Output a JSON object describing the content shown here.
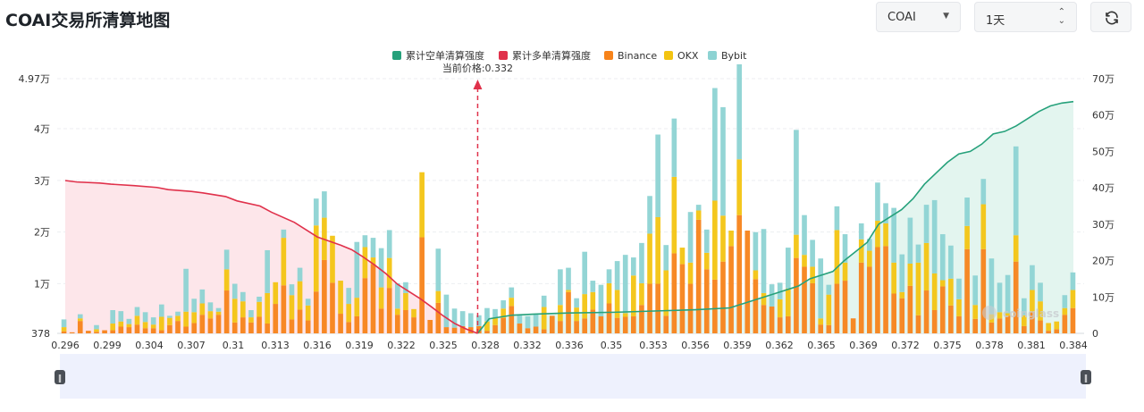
{
  "page": {
    "title": "COAI交易所清算地图"
  },
  "controls": {
    "symbol": "COAI",
    "period": "1天",
    "refresh_icon": "refresh-icon",
    "symbol_caret_icon": "caret-down-icon",
    "period_caret_icon": "up-down-caret-icon"
  },
  "watermark": "coinglass",
  "chart_data": {
    "type": "bar",
    "legend": [
      {
        "name": "累计空单清算强度",
        "color": "#26a17b"
      },
      {
        "name": "累计多单清算强度",
        "color": "#e0314b"
      },
      {
        "name": "Binance",
        "color": "#f7831a"
      },
      {
        "name": "OKX",
        "color": "#f3c412"
      },
      {
        "name": "Bybit",
        "color": "#8dd3d3"
      }
    ],
    "legend_position": "top-center",
    "current_price_label": "当前价格:0.332",
    "current_price": 0.332,
    "y_left": {
      "ticks": [
        "378",
        "1万",
        "2万",
        "3万",
        "4万",
        "4.97万"
      ],
      "tick_values": [
        378,
        10000,
        20000,
        30000,
        40000,
        49700
      ],
      "range": [
        378,
        49700
      ]
    },
    "y_right": {
      "ticks": [
        "0",
        "10万",
        "20万",
        "30万",
        "40万",
        "50万",
        "60万",
        "70万"
      ],
      "tick_values": [
        0,
        100000,
        200000,
        300000,
        400000,
        500000,
        600000,
        700000
      ],
      "range": [
        0,
        700000
      ]
    },
    "x_tick_labels": [
      "0.296",
      "0.299",
      "0.304",
      "0.307",
      "0.31",
      "0.313",
      "0.316",
      "0.319",
      "0.322",
      "0.325",
      "0.328",
      "0.332",
      "0.336",
      "0.35",
      "0.353",
      "0.356",
      "0.359",
      "0.362",
      "0.365",
      "0.369",
      "0.372",
      "0.375",
      "0.378",
      "0.381",
      "0.384"
    ],
    "stacks": [
      [
        400,
        800,
        1500
      ],
      [
        200,
        0,
        0
      ],
      [
        2400,
        500,
        800
      ],
      [
        500,
        0,
        0
      ],
      [
        300,
        500,
        800
      ],
      [
        600,
        0,
        0
      ],
      [
        600,
        1300,
        2600
      ],
      [
        1300,
        1000,
        2000
      ],
      [
        1200,
        600,
        1000
      ],
      [
        1700,
        1700,
        1700
      ],
      [
        1000,
        1200,
        1900
      ],
      [
        1000,
        700,
        1400
      ],
      [
        600,
        2600,
        2400
      ],
      [
        1600,
        1400,
        400
      ],
      [
        2400,
        1000,
        800
      ],
      [
        1300,
        2900,
        8300
      ],
      [
        2000,
        2100,
        2600
      ],
      [
        3600,
        2200,
        2700
      ],
      [
        2900,
        1400,
        1700
      ],
      [
        3600,
        600,
        700
      ],
      [
        8300,
        4100,
        3800
      ],
      [
        2100,
        4600,
        2900
      ],
      [
        3100,
        3100,
        1800
      ],
      [
        2100,
        1000,
        1400
      ],
      [
        3200,
        2900,
        1000
      ],
      [
        1900,
        5900,
        8300
      ],
      [
        5700,
        4200,
        0
      ],
      [
        9300,
        9200,
        1600
      ],
      [
        2700,
        4700,
        2100
      ],
      [
        4600,
        5500,
        2600
      ],
      [
        2500,
        2900,
        1300
      ],
      [
        8100,
        12800,
        5200
      ],
      [
        14200,
        8200,
        5100
      ],
      [
        9800,
        9100,
        0
      ],
      [
        3800,
        6400,
        0
      ],
      [
        2200,
        3500,
        3100
      ],
      [
        3300,
        3600,
        10800
      ],
      [
        10700,
        6000,
        2300
      ],
      [
        13400,
        1300,
        3800
      ],
      [
        4800,
        4100,
        7600
      ],
      [
        8800,
        5800,
        5400
      ],
      [
        3600,
        1200,
        4900
      ],
      [
        4500,
        3300,
        2100
      ],
      [
        3100,
        1600,
        0
      ],
      [
        18600,
        12600,
        0
      ],
      [
        2600,
        0,
        0
      ],
      [
        5900,
        2300,
        8200
      ],
      [
        1200,
        0,
        6300
      ],
      [
        1100,
        0,
        3700
      ],
      [
        1400,
        0,
        2900
      ],
      [
        1200,
        0,
        2700
      ],
      [
        1400,
        0,
        2100
      ],
      [
        500,
        1800,
        2600
      ],
      [
        1600,
        1500,
        1600
      ],
      [
        3000,
        1800,
        1600
      ],
      [
        5300,
        1600,
        2000
      ],
      [
        1900,
        0,
        1700
      ],
      [
        1000,
        0,
        2300
      ],
      [
        1300,
        0,
        2400
      ],
      [
        800,
        4300,
        2200
      ],
      [
        3400,
        0,
        0
      ],
      [
        2400,
        3100,
        6900
      ],
      [
        8000,
        400,
        4300
      ],
      [
        2400,
        2600,
        1800
      ],
      [
        2900,
        4700,
        8200
      ],
      [
        4600,
        3400,
        2200
      ],
      [
        3300,
        0,
        6100
      ],
      [
        5800,
        3900,
        2700
      ],
      [
        3000,
        5400,
        5600
      ],
      [
        3200,
        700,
        11300
      ],
      [
        3300,
        7900,
        3500
      ],
      [
        5500,
        4200,
        7800
      ],
      [
        9600,
        9700,
        7300
      ],
      [
        9600,
        12900,
        16000
      ],
      [
        3400,
        8800,
        4900
      ],
      [
        15500,
        14800,
        11300
      ],
      [
        13400,
        3200,
        0
      ],
      [
        9600,
        4100,
        9800
      ],
      [
        22000,
        1800,
        1100
      ],
      [
        12400,
        3200,
        4500
      ],
      [
        10400,
        15300,
        21800
      ],
      [
        13900,
        8900,
        21000
      ],
      [
        16900,
        3000,
        0
      ],
      [
        22900,
        10800,
        18400
      ],
      [
        19900,
        0,
        0
      ],
      [
        10500,
        1700,
        7400
      ],
      [
        5500,
        2300,
        12400
      ],
      [
        5200,
        0,
        4300
      ],
      [
        3100,
        3500,
        3200
      ],
      [
        3300,
        5400,
        7900
      ],
      [
        14600,
        4500,
        20300
      ],
      [
        12900,
        2300,
        7700
      ],
      [
        9700,
        3200,
        5200
      ],
      [
        1700,
        1200,
        11600
      ],
      [
        1600,
        5900,
        1900
      ],
      [
        9600,
        10400,
        4600
      ],
      [
        10200,
        3500,
        5500
      ],
      [
        2900,
        0,
        0
      ],
      [
        13700,
        4500,
        3100
      ],
      [
        12900,
        3100,
        2300
      ],
      [
        16700,
        5100,
        7400
      ],
      [
        16900,
        4400,
        3900
      ],
      [
        7700,
        6000,
        10600
      ],
      [
        6800,
        1200,
        7300
      ],
      [
        9200,
        4300,
        8900
      ],
      [
        3500,
        10200,
        3500
      ],
      [
        8300,
        9200,
        7400
      ],
      [
        4500,
        7100,
        14200
      ],
      [
        9100,
        1200,
        8900
      ],
      [
        5400,
        5200,
        6400
      ],
      [
        3300,
        3300,
        4000
      ],
      [
        16300,
        4500,
        5500
      ],
      [
        2800,
        2700,
        5700
      ],
      [
        16300,
        8700,
        4900
      ],
      [
        2100,
        1600,
        10800
      ],
      [
        2900,
        1200,
        5700
      ],
      [
        3400,
        500,
        7400
      ],
      [
        13900,
        5100,
        17200
      ],
      [
        1400,
        2100,
        3300
      ],
      [
        4200,
        4200,
        4800
      ],
      [
        2500,
        3700,
        3600
      ],
      [
        500,
        1500,
        0
      ],
      [
        800,
        1500,
        0
      ],
      [
        3600,
        1300,
        2500
      ],
      [
        4900,
        3500,
        3400
      ]
    ],
    "cumulative_long_curve": {
      "x": [
        0.296,
        0.297,
        0.299,
        0.3,
        0.302,
        0.304,
        0.305,
        0.307,
        0.308,
        0.31,
        0.311,
        0.313,
        0.314,
        0.316,
        0.317,
        0.318,
        0.32,
        0.321,
        0.322,
        0.323,
        0.324,
        0.325,
        0.326,
        0.327,
        0.328,
        0.329,
        0.33,
        0.331,
        0.332
      ],
      "y": [
        420000,
        416000,
        413000,
        410000,
        406000,
        401000,
        395000,
        390000,
        386000,
        376000,
        364000,
        350000,
        333000,
        305000,
        285000,
        265000,
        243000,
        230000,
        210000,
        188000,
        164000,
        135000,
        115000,
        95000,
        72000,
        48000,
        27000,
        12000,
        0
      ]
    },
    "cumulative_short_curve": {
      "x": [
        0.332,
        0.333,
        0.335,
        0.337,
        0.34,
        0.344,
        0.348,
        0.351,
        0.354,
        0.356,
        0.358,
        0.36,
        0.361,
        0.363,
        0.364,
        0.366,
        0.367,
        0.369,
        0.37,
        0.371,
        0.372,
        0.373,
        0.374,
        0.375,
        0.376,
        0.377,
        0.378,
        0.379,
        0.38,
        0.381,
        0.382,
        0.383,
        0.384
      ],
      "y": [
        0,
        40000,
        50000,
        53000,
        56000,
        58000,
        62000,
        65000,
        70000,
        90000,
        110000,
        130000,
        150000,
        170000,
        200000,
        250000,
        300000,
        340000,
        370000,
        410000,
        440000,
        470000,
        493000,
        500000,
        520000,
        548000,
        555000,
        570000,
        590000,
        610000,
        625000,
        633000,
        637000
      ]
    }
  }
}
